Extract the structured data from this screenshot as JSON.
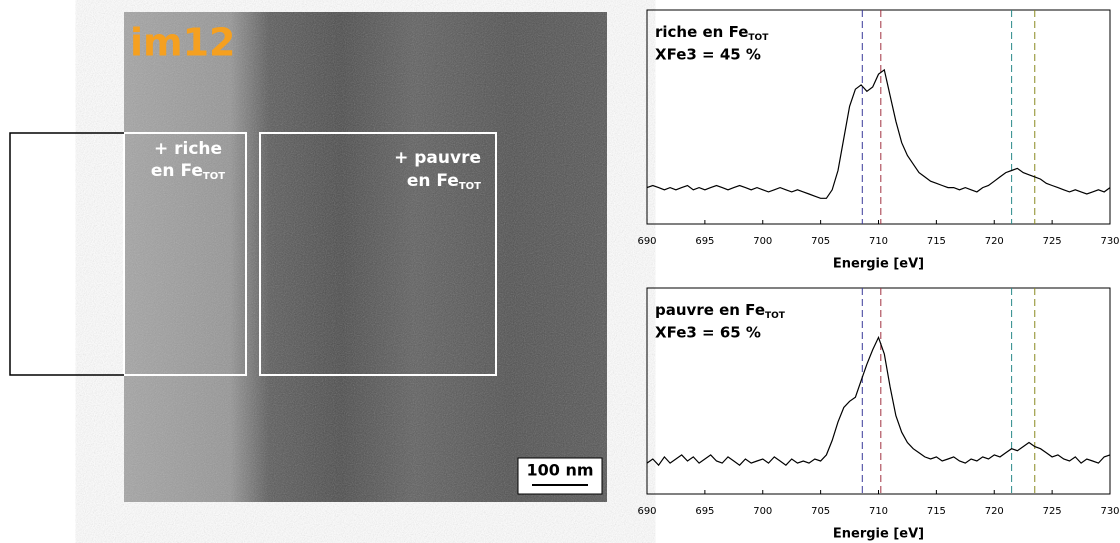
{
  "image_panel": {
    "label": "im12",
    "regions": [
      {
        "line1": "+ riche",
        "line2": "en Fe",
        "sub": "TOT"
      },
      {
        "line1": "+ pauvre",
        "line2": "en Fe",
        "sub": "TOT"
      }
    ],
    "scale_bar": "100 nm"
  },
  "chart_data": [
    {
      "type": "line",
      "title": "riche en Fe",
      "title_sub": "TOT",
      "subtitle": "XFe3 = 45 %",
      "xlabel": "Energie [eV]",
      "x": [
        690,
        690.5,
        691,
        691.5,
        692,
        692.5,
        693,
        693.5,
        694,
        694.5,
        695,
        695.5,
        696,
        696.5,
        697,
        697.5,
        698,
        698.5,
        699,
        699.5,
        700,
        700.5,
        701,
        701.5,
        702,
        702.5,
        703,
        703.5,
        704,
        704.5,
        705,
        705.5,
        706,
        706.5,
        707,
        707.5,
        708,
        708.5,
        709,
        709.5,
        710,
        710.5,
        711,
        711.5,
        712,
        712.5,
        713,
        713.5,
        714,
        714.5,
        715,
        715.5,
        716,
        716.5,
        717,
        717.5,
        718,
        718.5,
        719,
        719.5,
        720,
        720.5,
        721,
        721.5,
        722,
        722.5,
        723,
        723.5,
        724,
        724.5,
        725,
        725.5,
        726,
        726.5,
        727,
        727.5,
        728,
        728.5,
        729,
        729.5,
        730
      ],
      "series": [
        {
          "color": "#000000",
          "values": [
            0.17,
            0.18,
            0.17,
            0.16,
            0.17,
            0.16,
            0.17,
            0.18,
            0.16,
            0.17,
            0.16,
            0.17,
            0.18,
            0.17,
            0.16,
            0.17,
            0.18,
            0.17,
            0.16,
            0.17,
            0.16,
            0.15,
            0.16,
            0.17,
            0.16,
            0.15,
            0.16,
            0.15,
            0.14,
            0.13,
            0.12,
            0.12,
            0.16,
            0.25,
            0.4,
            0.55,
            0.63,
            0.65,
            0.62,
            0.64,
            0.7,
            0.72,
            0.6,
            0.48,
            0.38,
            0.32,
            0.28,
            0.24,
            0.22,
            0.2,
            0.19,
            0.18,
            0.17,
            0.17,
            0.16,
            0.17,
            0.16,
            0.15,
            0.17,
            0.18,
            0.2,
            0.22,
            0.24,
            0.25,
            0.26,
            0.24,
            0.23,
            0.22,
            0.21,
            0.19,
            0.18,
            0.17,
            0.16,
            0.15,
            0.16,
            0.15,
            0.14,
            0.15,
            0.16,
            0.15,
            0.17
          ]
        }
      ],
      "vlines": [
        {
          "x": 708.6,
          "color": "#3a3a9a"
        },
        {
          "x": 710.2,
          "color": "#a03040"
        },
        {
          "x": 721.5,
          "color": "#2a8a8a"
        },
        {
          "x": 723.5,
          "color": "#8a8a20"
        }
      ],
      "xlim": [
        690,
        730
      ],
      "xticks": [
        690,
        695,
        700,
        705,
        710,
        715,
        720,
        725,
        730
      ],
      "ylim": [
        0,
        1
      ]
    },
    {
      "type": "line",
      "title": "pauvre en Fe",
      "title_sub": "TOT",
      "subtitle": "XFe3 = 65 %",
      "xlabel": "Energie [eV]",
      "x": [
        690,
        690.5,
        691,
        691.5,
        692,
        692.5,
        693,
        693.5,
        694,
        694.5,
        695,
        695.5,
        696,
        696.5,
        697,
        697.5,
        698,
        698.5,
        699,
        699.5,
        700,
        700.5,
        701,
        701.5,
        702,
        702.5,
        703,
        703.5,
        704,
        704.5,
        705,
        705.5,
        706,
        706.5,
        707,
        707.5,
        708,
        708.5,
        709,
        709.5,
        710,
        710.5,
        711,
        711.5,
        712,
        712.5,
        713,
        713.5,
        714,
        714.5,
        715,
        715.5,
        716,
        716.5,
        717,
        717.5,
        718,
        718.5,
        719,
        719.5,
        720,
        720.5,
        721,
        721.5,
        722,
        722.5,
        723,
        723.5,
        724,
        724.5,
        725,
        725.5,
        726,
        726.5,
        727,
        727.5,
        728,
        728.5,
        729,
        729.5,
        730
      ],
      "series": [
        {
          "color": "#000000",
          "values": [
            0.15,
            0.17,
            0.14,
            0.18,
            0.15,
            0.17,
            0.19,
            0.16,
            0.18,
            0.15,
            0.17,
            0.19,
            0.16,
            0.15,
            0.18,
            0.16,
            0.14,
            0.17,
            0.15,
            0.16,
            0.17,
            0.15,
            0.18,
            0.16,
            0.14,
            0.17,
            0.15,
            0.16,
            0.15,
            0.17,
            0.16,
            0.19,
            0.26,
            0.35,
            0.42,
            0.45,
            0.47,
            0.55,
            0.63,
            0.7,
            0.76,
            0.68,
            0.52,
            0.38,
            0.3,
            0.25,
            0.22,
            0.2,
            0.18,
            0.17,
            0.18,
            0.16,
            0.17,
            0.18,
            0.16,
            0.15,
            0.17,
            0.16,
            0.18,
            0.17,
            0.19,
            0.18,
            0.2,
            0.22,
            0.21,
            0.23,
            0.25,
            0.23,
            0.22,
            0.2,
            0.18,
            0.19,
            0.17,
            0.16,
            0.18,
            0.15,
            0.17,
            0.16,
            0.15,
            0.18,
            0.19
          ]
        }
      ],
      "vlines": [
        {
          "x": 708.6,
          "color": "#3a3a9a"
        },
        {
          "x": 710.2,
          "color": "#a03040"
        },
        {
          "x": 721.5,
          "color": "#2a8a8a"
        },
        {
          "x": 723.5,
          "color": "#8a8a20"
        }
      ],
      "xlim": [
        690,
        730
      ],
      "xticks": [
        690,
        695,
        700,
        705,
        710,
        715,
        720,
        725,
        730
      ],
      "ylim": [
        0,
        1
      ]
    }
  ]
}
